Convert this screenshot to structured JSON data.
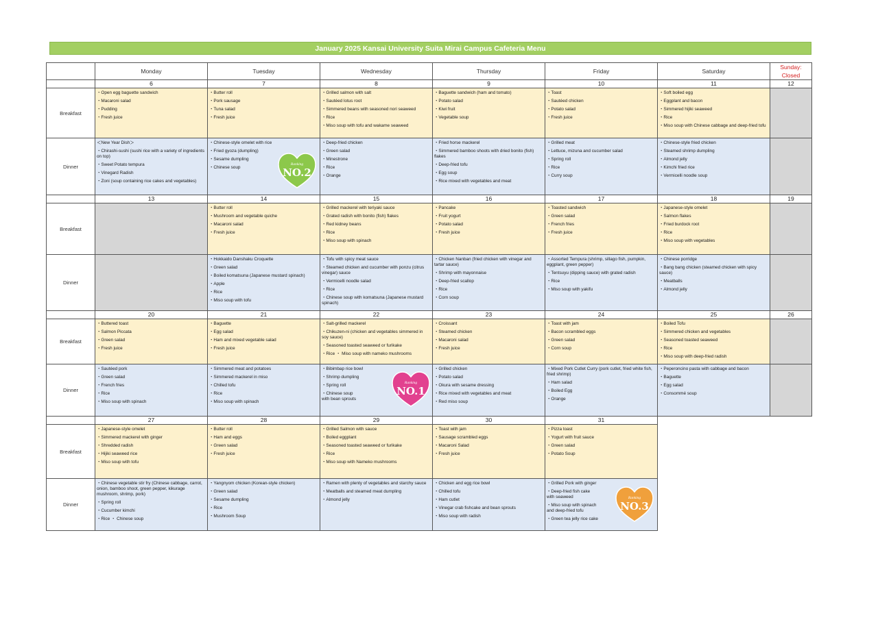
{
  "title": "January   2025  Kansai University Suita Mirai Campus Cafeteria Menu",
  "days": [
    "Monday",
    "Tuesday",
    "Wednesday",
    "Thursday",
    "Friday",
    "Saturday"
  ],
  "sunday": "Sunday:\nClosed",
  "labels": {
    "breakfast": "Breakfast",
    "dinner": "Dinner"
  },
  "ranking_word": "Ranking",
  "badges": {
    "no1": "NO.1",
    "no2": "NO.2",
    "no3": "NO.3"
  },
  "weeks": [
    {
      "dates": [
        "6",
        "7",
        "8",
        "9",
        "10",
        "11",
        "12"
      ],
      "breakfast": [
        [
          "Open egg baguette sandwich",
          "Macaroni salad",
          "Pudding",
          "Fresh juice"
        ],
        [
          "Butter roll",
          "Pork sausage",
          "Tuna salad",
          "Fresh juice"
        ],
        [
          "Grilled salmon with salt",
          "Sautéed lotus root",
          "Simmered beans with seasoned nori seaweed",
          "Rice",
          "Miso soup with tofu and wakame seaweed"
        ],
        [
          "Baguette sandwich (ham and tomato)",
          "Potato salad",
          "Kiwi fruit",
          "Vegetable soup"
        ],
        [
          "Toast",
          "Sautéed chicken",
          "Potato salad",
          "Fresh juice"
        ],
        [
          "Soft boiled egg",
          "Eggplant and bacon",
          "Simmered hijiki seaweed",
          "Rice",
          "Miso soup with Chinese cabbage and deep-fried tofu"
        ]
      ],
      "dinner": [
        [
          "＜New Year Dish＞",
          "Chirashi-sushi (sushi rice with a variety of ingredients on top)",
          "Sweet Potato tempura",
          "Vinegard Radish",
          "Zoni (soup containing rice cakes and vegetables)"
        ],
        [
          "Chinese-style omelet with rice",
          "Fried gyoza (dumpling)",
          "Sesame dumpling",
          "Chinese soup"
        ],
        [
          "Deep-fried chicken",
          "Green salad",
          "Minestrone",
          "Rice",
          "Orange"
        ],
        [
          "Fried horse mackerel",
          "Simmered bamboo shoots with dried bonito (fish) flakes",
          "Deep-fried tofu",
          "Egg soup",
          "Rice mixed with vegetables and meat"
        ],
        [
          "Grilled meat",
          "Lettuce, mizuna and cucumber salad",
          "Spring roll",
          "Rice",
          "Curry soup"
        ],
        [
          "Chinese-style fried chicken",
          "Steamed shrimp dumpling",
          "Almond jelly",
          "Kimchi fried rice",
          "Vermicelli noodle soup"
        ]
      ]
    },
    {
      "dates": [
        "13",
        "14",
        "15",
        "16",
        "17",
        "18",
        "19"
      ],
      "breakfast": [
        [],
        [
          "Butter roll",
          "Mushroom and vegetable quiche",
          "Macaroni salad",
          "Fresh juice"
        ],
        [
          "Grilled mackerel with teriyaki sauce",
          "Grated radish with bonito (fish) flakes",
          "Red kidney beans",
          "Rice",
          "Miso soup with spinach"
        ],
        [
          "Pancake",
          "Fruit yogurt",
          "Potato salad",
          "Fresh juice"
        ],
        [
          "Toasted sandwich",
          "Green salad",
          "French fries",
          "Fresh juice"
        ],
        [
          "Japanese-style omelet",
          "Salmon flakes",
          "Fried burdock root",
          "Rice",
          "Miso soup with vegetables"
        ]
      ],
      "dinner": [
        [],
        [
          "Hokkaido Danshaku Croquette",
          "Green salad",
          "Boiled komatsuna (Japanese mustard spinach)",
          "Apple",
          "Rice",
          "Miso soup with tofu"
        ],
        [
          "Tofu with spicy meat sauce",
          "Steamed chicken and cucumber with ponzu (citrus vinegar) sauce",
          "Vermicelli noodle salad",
          "Rice",
          "Chinese soup with komatsuna (Japanese mustard spinach)"
        ],
        [
          "Chicken Nanban (fried chicken with vinegar and tartar sauce)",
          "Shrimp with mayonnaise",
          "Deep-fried scallop",
          "Rice",
          "Corn soup"
        ],
        [
          "Assorted Tempura (shrimp, sillago fish, pumpkin, eggplant, green pepper)",
          "Tentsuyu (dipping sauce) with grated radish",
          "Rice",
          "Miso soup with yakifu"
        ],
        [
          "Chinese porridge",
          "Bang bang chicken (steamed chicken with spicy sauce)",
          "Meatballs",
          "Almond jelly"
        ]
      ]
    },
    {
      "dates": [
        "20",
        "21",
        "22",
        "23",
        "24",
        "25",
        "26"
      ],
      "breakfast": [
        [
          "Buttered toast",
          "Salmon Piccata",
          "Green salad",
          "Fresh juice"
        ],
        [
          "Baguette",
          "Egg salad",
          "Ham and mixed vegetable  salad",
          "Fresh juice"
        ],
        [
          "Salt-grilled mackerel",
          "Chikuzen-ni (chicken and vegetables simmered in soy sauce)",
          "Seasoned toasted seaweed or furikake",
          "Rice  ・ Miso soup with nameko mushrooms"
        ],
        [
          "Croissant",
          "Steamed chicken",
          "Macaroni salad",
          "Fresh juice"
        ],
        [
          "Toast with jam",
          "Bacon scrambled eggs",
          "Green salad",
          "Corn soup"
        ],
        [
          "Boiled Tofu",
          "Simmered chicken and vegetables",
          "Seasoned toasted seaweed",
          "Rice",
          "Miso soup with deep-fried radish"
        ]
      ],
      "dinner": [
        [
          "Sautéed pork",
          "Green salad",
          "French fries",
          "Rice",
          "Miso soup with spinach"
        ],
        [
          "Simmered meat and potatoes",
          "Simmered mackerel in miso",
          "Chilled tofu",
          "Rice",
          "Miso soup with spinach"
        ],
        [
          "Bibimbap rice bowl",
          "Shrimp dumpling",
          "Spring roll",
          "Chinese soup\n    with bean sprouts"
        ],
        [
          "Grilled chicken",
          "Potato salad",
          "Okura with sesame dressing",
          "Rice mixed with vegetables and meat",
          "Red miso soup"
        ],
        [
          "Mixed Pork Cutlet Curry (pork cutlet, fried white fish, fried shrimp)",
          "Ham salad",
          "Boiled Egg",
          "Orange"
        ],
        [
          "Peperoncino pasta with cabbage and bacon",
          "Baguette",
          "Egg salad",
          "Consommé soup"
        ]
      ]
    },
    {
      "dates": [
        "27",
        "28",
        "29",
        "30",
        "31"
      ],
      "breakfast": [
        [
          "Japanese-style omelet",
          "Simmered mackerel with ginger",
          "Shredded radish",
          "Hijiki seaweed rice",
          "Miso soup with tofu"
        ],
        [
          "Butter roll",
          "Ham and eggs",
          "Green salad",
          "Fresh juice"
        ],
        [
          "Grilled Salmon with sauce",
          "Boiled eggplant",
          "Seasoned toasted seaweed or furikake",
          "Rice",
          "Miso soup with Nameko mushrooms"
        ],
        [
          "Toast with jam",
          "Sausage scrambled eggs",
          "Macaroni Salad",
          "Fresh juice"
        ],
        [
          "Pizza toast",
          "Yogurt with fruit sauce",
          "Green salad",
          "Potato Soup"
        ]
      ],
      "dinner": [
        [
          "Chinese vegetable stir fry (Chinese cabbage, carrot, onion, bamboo shoot, green pepper, kikurage mushroom, shrimp, pork)",
          "Spring roll",
          "Cucumber kimchi",
          "Rice  ・ Chinese soup"
        ],
        [
          "Yangnyom chicken (Korean-style chicken)",
          "Green salad",
          "Sesame dumpling",
          "Rice",
          "Mushroom Soup"
        ],
        [
          "Ramen with plenty of vegetables and starchy sauce",
          "Meatballs and steamed meat dumpling",
          "Almond jelly"
        ],
        [
          "Chicken and egg rice bowl",
          "Chilled tofu",
          "Ham cutlet",
          "Vinegar crab fishcake and bean sprouts",
          "Miso soup with radish"
        ],
        [
          "Grilled Pork with ginger",
          "Deep-fried fish cake\n           with seaweed",
          "Miso soup with spinach\n        and deep-fried tofu",
          "Green tea jelly rice cake"
        ]
      ]
    }
  ],
  "colors": {
    "title_bar": "#a3cf62",
    "breakfast_bg": "#fdf1cc",
    "dinner_bg": "#dfe8f5",
    "closed_bg": "#d6d6d6",
    "sunday_text": "#d42020",
    "no1": "#e2418f",
    "no2": "#8cc84b",
    "no3": "#f0a03c"
  }
}
